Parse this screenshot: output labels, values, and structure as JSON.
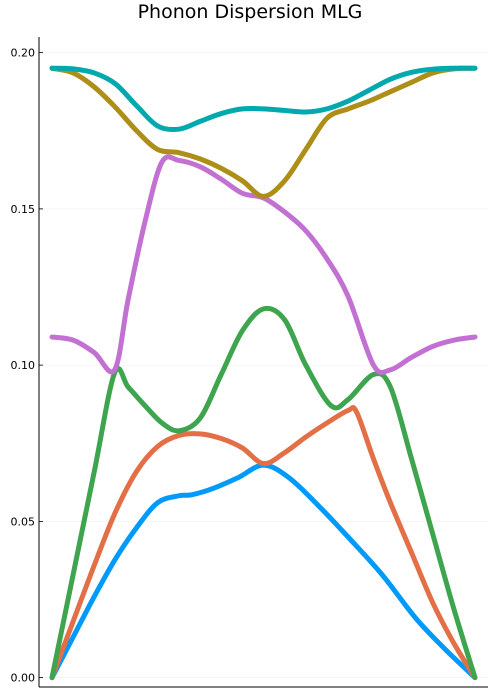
{
  "chart_data": {
    "type": "line",
    "title": "Phonon Dispersion MLG",
    "xlabel": "",
    "ylabel": "",
    "xlim": [
      0,
      1
    ],
    "ylim": [
      -0.003,
      0.205
    ],
    "yticks": [
      0.0,
      0.05,
      0.1,
      0.15,
      0.2
    ],
    "ytick_labels": [
      "0.00",
      "0.05",
      "0.10",
      "0.15",
      "0.20"
    ],
    "grid": true,
    "legend": "none",
    "series": [
      {
        "color": "#009AFA",
        "x": [
          0,
          0.05,
          0.1,
          0.15,
          0.2,
          0.25,
          0.3,
          0.33,
          0.38,
          0.44,
          0.5,
          0.56,
          0.63,
          0.7,
          0.78,
          0.86,
          0.93,
          1
        ],
        "y": [
          0.0,
          0.013,
          0.026,
          0.038,
          0.048,
          0.056,
          0.0582,
          0.0585,
          0.0605,
          0.064,
          0.068,
          0.064,
          0.055,
          0.045,
          0.033,
          0.019,
          0.009,
          0.0
        ]
      },
      {
        "color": "#E36F47",
        "x": [
          0,
          0.05,
          0.1,
          0.15,
          0.2,
          0.25,
          0.3,
          0.35,
          0.4,
          0.45,
          0.5,
          0.55,
          0.6,
          0.65,
          0.7,
          0.72,
          0.76,
          0.8,
          0.85,
          0.9,
          0.95,
          1
        ],
        "y": [
          0.0,
          0.018,
          0.036,
          0.053,
          0.066,
          0.074,
          0.0775,
          0.078,
          0.0765,
          0.0735,
          0.0685,
          0.072,
          0.077,
          0.0815,
          0.0855,
          0.085,
          0.07,
          0.056,
          0.04,
          0.024,
          0.011,
          0.0
        ]
      },
      {
        "color": "#3EA44E",
        "x": [
          0,
          0.05,
          0.1,
          0.148,
          0.18,
          0.22,
          0.26,
          0.3,
          0.35,
          0.4,
          0.45,
          0.5,
          0.55,
          0.6,
          0.66,
          0.7,
          0.76,
          0.8,
          0.85,
          0.9,
          0.95,
          1
        ],
        "y": [
          0.0,
          0.033,
          0.066,
          0.0975,
          0.093,
          0.087,
          0.0815,
          0.079,
          0.083,
          0.097,
          0.111,
          0.118,
          0.1145,
          0.1,
          0.087,
          0.089,
          0.097,
          0.093,
          0.07,
          0.046,
          0.022,
          0.0
        ]
      },
      {
        "color": "#C271D2",
        "x": [
          0,
          0.05,
          0.1,
          0.148,
          0.18,
          0.22,
          0.26,
          0.3,
          0.35,
          0.4,
          0.45,
          0.5,
          0.55,
          0.6,
          0.65,
          0.7,
          0.76,
          0.8,
          0.85,
          0.9,
          0.95,
          1
        ],
        "y": [
          0.109,
          0.108,
          0.104,
          0.0985,
          0.121,
          0.146,
          0.165,
          0.1655,
          0.1635,
          0.1595,
          0.155,
          0.1535,
          0.149,
          0.143,
          0.134,
          0.122,
          0.1,
          0.0985,
          0.1025,
          0.106,
          0.108,
          0.109
        ]
      },
      {
        "color": "#AC8E18",
        "x": [
          0,
          0.05,
          0.1,
          0.15,
          0.2,
          0.25,
          0.3,
          0.35,
          0.4,
          0.45,
          0.5,
          0.55,
          0.6,
          0.65,
          0.7,
          0.75,
          0.8,
          0.85,
          0.9,
          0.95,
          1
        ],
        "y": [
          0.195,
          0.1935,
          0.189,
          0.1825,
          0.175,
          0.169,
          0.168,
          0.166,
          0.163,
          0.159,
          0.154,
          0.159,
          0.169,
          0.179,
          0.182,
          0.1845,
          0.1875,
          0.1905,
          0.1935,
          0.1948,
          0.195
        ]
      },
      {
        "color": "#00A9AD",
        "x": [
          0,
          0.05,
          0.1,
          0.15,
          0.2,
          0.25,
          0.3,
          0.35,
          0.4,
          0.45,
          0.5,
          0.55,
          0.6,
          0.65,
          0.7,
          0.75,
          0.8,
          0.85,
          0.9,
          0.95,
          1
        ],
        "y": [
          0.195,
          0.1948,
          0.1935,
          0.19,
          0.183,
          0.1765,
          0.1755,
          0.178,
          0.1805,
          0.182,
          0.182,
          0.1815,
          0.181,
          0.182,
          0.1845,
          0.188,
          0.1915,
          0.1937,
          0.1947,
          0.195,
          0.195
        ]
      }
    ]
  }
}
